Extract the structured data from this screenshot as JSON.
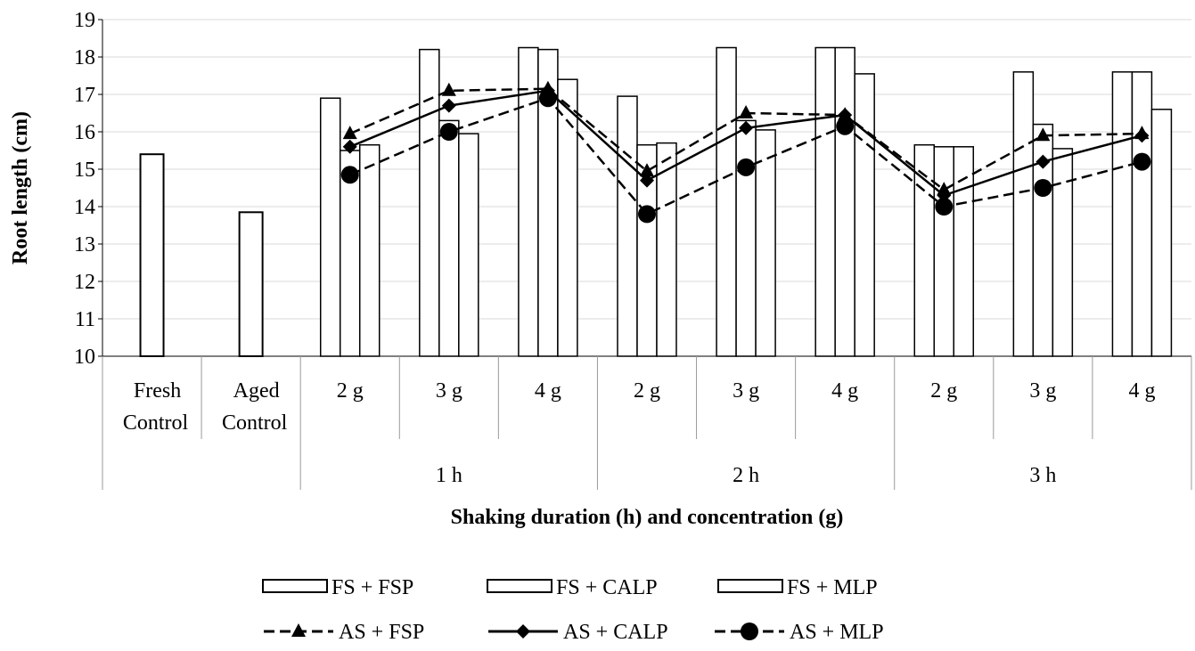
{
  "chart_data": {
    "type": "bar+line",
    "ylabel": "Root length (cm)",
    "xlabel": "Shaking duration (h) and concentration (g)",
    "ylim": [
      10,
      19
    ],
    "yticks": [
      10,
      11,
      12,
      13,
      14,
      15,
      16,
      17,
      18,
      19
    ],
    "grid": true,
    "legend_position": "bottom",
    "control_categories": [
      {
        "line1": "Fresh",
        "line2": "Control",
        "value": 15.4
      },
      {
        "line1": "Aged",
        "line2": "Control",
        "value": 13.85
      }
    ],
    "categories": [
      "2 g",
      "3 g",
      "4 g",
      "2 g",
      "3 g",
      "4 g",
      "2 g",
      "3 g",
      "4 g"
    ],
    "groups": [
      "1 h",
      "2 h",
      "3 h"
    ],
    "bar_series": [
      {
        "name": "FS + FSP",
        "values": [
          16.9,
          18.2,
          18.25,
          16.95,
          18.25,
          18.25,
          15.65,
          17.6,
          17.6
        ]
      },
      {
        "name": "FS + CALP",
        "values": [
          15.5,
          16.3,
          18.2,
          15.65,
          16.3,
          18.25,
          15.6,
          16.2,
          17.6
        ]
      },
      {
        "name": "FS + MLP",
        "values": [
          15.65,
          15.95,
          17.4,
          15.7,
          16.05,
          17.55,
          15.6,
          15.55,
          16.6
        ]
      }
    ],
    "line_series": [
      {
        "name": "AS + FSP",
        "marker": "triangle",
        "dash": "dashed",
        "values": [
          15.95,
          17.1,
          17.15,
          14.95,
          16.5,
          16.45,
          14.45,
          15.9,
          15.95
        ]
      },
      {
        "name": "AS + CALP",
        "marker": "diamond",
        "dash": "solid",
        "values": [
          15.6,
          16.7,
          17.1,
          14.7,
          16.1,
          16.45,
          14.3,
          15.2,
          15.9
        ]
      },
      {
        "name": "AS + MLP",
        "marker": "circle",
        "dash": "dashed",
        "values": [
          14.85,
          16.0,
          16.9,
          13.8,
          15.05,
          16.15,
          14.0,
          14.5,
          15.2
        ]
      }
    ]
  }
}
